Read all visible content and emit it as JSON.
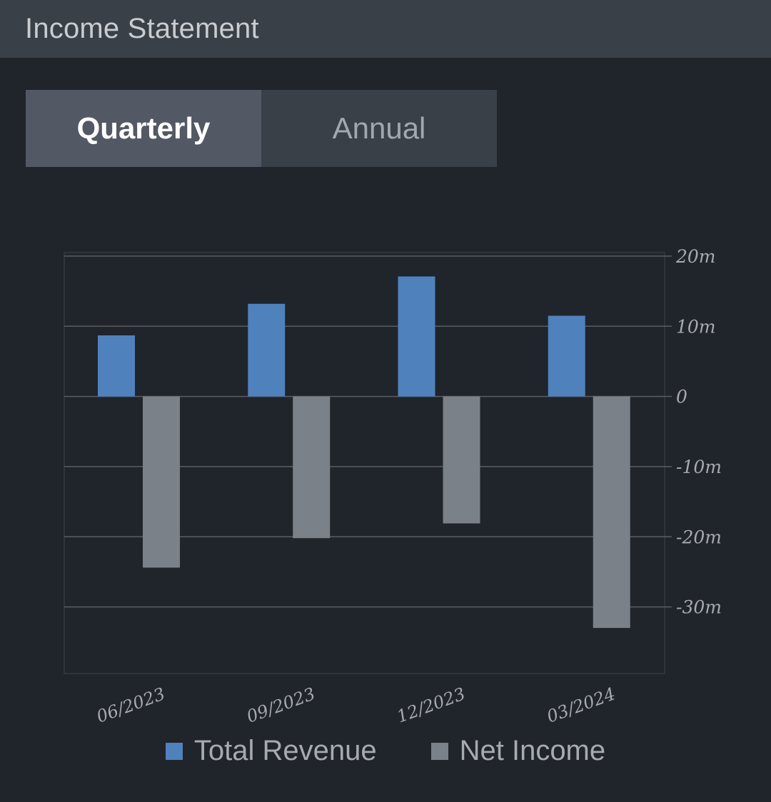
{
  "header": {
    "title": "Income Statement"
  },
  "toggle": {
    "options": [
      "Quarterly",
      "Annual"
    ],
    "selected": "Quarterly"
  },
  "colors": {
    "revenue": "#4f81bd",
    "net_income": "#7b8188",
    "grid": "#5a5e64",
    "frame": "#2f343b"
  },
  "chart_data": {
    "type": "bar",
    "categories": [
      "06/2023",
      "09/2023",
      "12/2023",
      "03/2024"
    ],
    "series": [
      {
        "name": "Total Revenue",
        "values": [
          8.7,
          13.2,
          17.1,
          11.5
        ]
      },
      {
        "name": "Net Income",
        "values": [
          -24.4,
          -20.2,
          -18.1,
          -33.0
        ]
      }
    ],
    "ylim": [
      -39.5,
      20.5
    ],
    "yticks": [
      20,
      10,
      0,
      -10,
      -20,
      -30
    ],
    "ytick_labels": [
      "20m",
      "10m",
      "0",
      "-10m",
      "-20m",
      "-30m"
    ],
    "y_axis_position": "right",
    "grid": true,
    "legend_position": "bottom"
  },
  "legend": {
    "items": [
      "Total Revenue",
      "Net Income"
    ]
  }
}
